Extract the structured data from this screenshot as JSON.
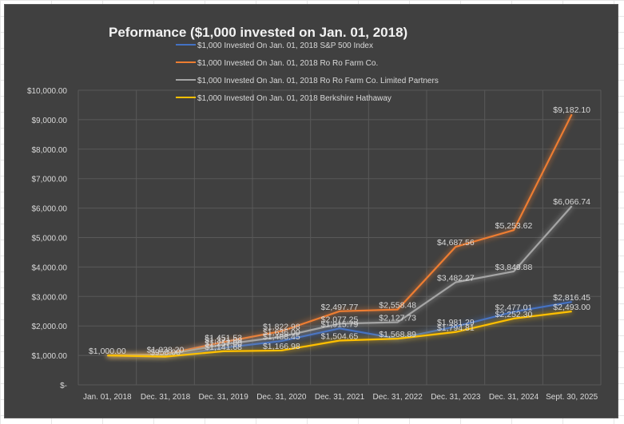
{
  "chart_data": {
    "type": "line",
    "title": "Peformance ($1,000 invested on Jan. 01, 2018)",
    "xlabel": "",
    "ylabel": "",
    "ylim": [
      0,
      10000
    ],
    "grid": true,
    "legend_position": "top",
    "y_ticks": [
      "$-",
      "$1,000.00",
      "$2,000.00",
      "$3,000.00",
      "$4,000.00",
      "$5,000.00",
      "$6,000.00",
      "$7,000.00",
      "$8,000.00",
      "$9,000.00",
      "$10,000.00"
    ],
    "y_tick_values": [
      0,
      1000,
      2000,
      3000,
      4000,
      5000,
      6000,
      7000,
      8000,
      9000,
      10000
    ],
    "categories": [
      "Jan. 01, 2018",
      "Dec. 31, 2018",
      "Dec. 31, 2019",
      "Dec. 31, 2020",
      "Dec. 31, 2021",
      "Dec. 31, 2022",
      "Dec. 31, 2023",
      "Dec. 31, 2024",
      "Sept. 30, 2025"
    ],
    "series": [
      {
        "name": "$1,000 Invested On Jan. 01, 2018 S&P 500 Index",
        "color": "#4472c4",
        "values": [
          1000,
          956,
          1257,
          1488.45,
          1915.79,
          1568.89,
          1981.29,
          2477.01,
          2816.45
        ],
        "labels": [
          "",
          "",
          "$1,257.00",
          "$1,488.45",
          "$1,915.79",
          "",
          "$1,981.29",
          "$2,477.01",
          "$2,816.45"
        ]
      },
      {
        "name": "$1,000 Invested On Jan. 01, 2018 Ro Ro Farm Co.",
        "color": "#ed7d31",
        "values": [
          1000,
          1038.2,
          1451.53,
          1822.98,
          2497.77,
          2558.48,
          4687.56,
          5253.62,
          9182.1
        ],
        "labels": [
          "",
          "$1,038.20",
          "$1,451.53",
          "$1,822.98",
          "$2,497.77",
          "$2,558.48",
          "$4,687.56",
          "$5,253.62",
          "$9,182.10"
        ]
      },
      {
        "name": "$1,000 Invested On Jan. 01, 2018 Ro Ro Farm Co. Limited Partners",
        "color": "#a5a5a5",
        "values": [
          1000,
          1020,
          1371,
          1636,
          2077.25,
          2127.73,
          3482.27,
          3849.88,
          6066.74
        ],
        "labels": [
          "",
          "",
          "$1,371.00",
          "$1,636.00",
          "$2,077.25",
          "$2,127.73",
          "$3,482.27",
          "$3,849.88",
          "$6,066.74"
        ]
      },
      {
        "name": "$1,000 Invested On Jan. 01, 2018 Berkshire Hathaway",
        "color": "#ffc000",
        "values": [
          1000,
          958,
          1141.68,
          1166.98,
          1504.65,
          1568.89,
          1794.81,
          2252.3,
          2493.0
        ],
        "labels": [
          "$1,000.00",
          "$958.00",
          "$1,141.68",
          "$1,166.98",
          "$1,504.65",
          "$1,568.89",
          "$1,794.81",
          "$2,252.30",
          "$2,493.00"
        ]
      }
    ]
  }
}
